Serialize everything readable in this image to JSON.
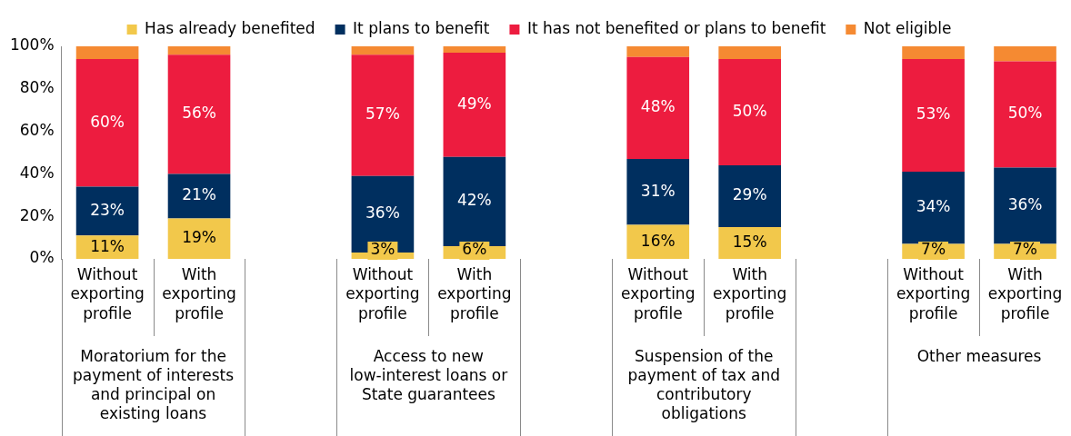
{
  "chart_data": {
    "type": "bar",
    "stacked": true,
    "legend": "top",
    "data_labels": false,
    "categories": [
      "Without exporting profile",
      "With exporting profile",
      null,
      "Without exporting profile",
      "With exporting profile",
      null,
      "Without exporting profile",
      "With exporting profile",
      null,
      "Without exporting profile",
      "With exporting profile"
    ],
    "annotations": [
      "Moratorium for the payment of interests and principal on existing loans",
      "Access to new low-interest loans or State guarantees",
      "Suspension of the payment of tax and contributory obligations",
      "Other measures"
    ],
    "ylim": [
      0,
      100
    ],
    "yticks": [
      {
        "value": 0,
        "label": "0%"
      },
      {
        "value": 20,
        "label": "20%"
      },
      {
        "value": 40,
        "label": "40%"
      },
      {
        "value": 60,
        "label": "60%"
      },
      {
        "value": 80,
        "label": "80%"
      },
      {
        "value": 100,
        "label": "100%"
      }
    ],
    "series": [
      {
        "name": "Has already benefited",
        "color": "#f2c84b",
        "values": [
          11,
          19,
          null,
          3,
          6,
          null,
          16,
          15,
          null,
          7,
          7
        ],
        "value_labels": [
          "11%",
          "19%",
          null,
          "3%",
          "6%",
          null,
          "16%",
          "15%",
          null,
          "7%",
          "7%"
        ]
      },
      {
        "name": "It plans to benefit",
        "color": "#002f5f",
        "values": [
          23,
          21,
          null,
          36,
          42,
          null,
          31,
          29,
          null,
          34,
          36
        ],
        "value_labels": [
          "23%",
          "21%",
          null,
          "36%",
          "42%",
          null,
          "31%",
          "29%",
          null,
          "34%",
          "36%"
        ]
      },
      {
        "name": "It has not benefited or plans to benefit",
        "color": "#ed1c3f",
        "values": [
          60,
          56,
          null,
          57,
          49,
          null,
          48,
          50,
          null,
          53,
          50
        ],
        "value_labels": [
          "60%",
          "56%",
          null,
          "57%",
          "49%",
          null,
          "48%",
          "50%",
          null,
          "53%",
          "50%"
        ]
      },
      {
        "name": "Not eligible",
        "color": "#f58a32",
        "values": [
          6,
          4,
          null,
          4,
          3,
          null,
          5,
          6,
          null,
          6,
          7
        ]
      }
    ]
  }
}
